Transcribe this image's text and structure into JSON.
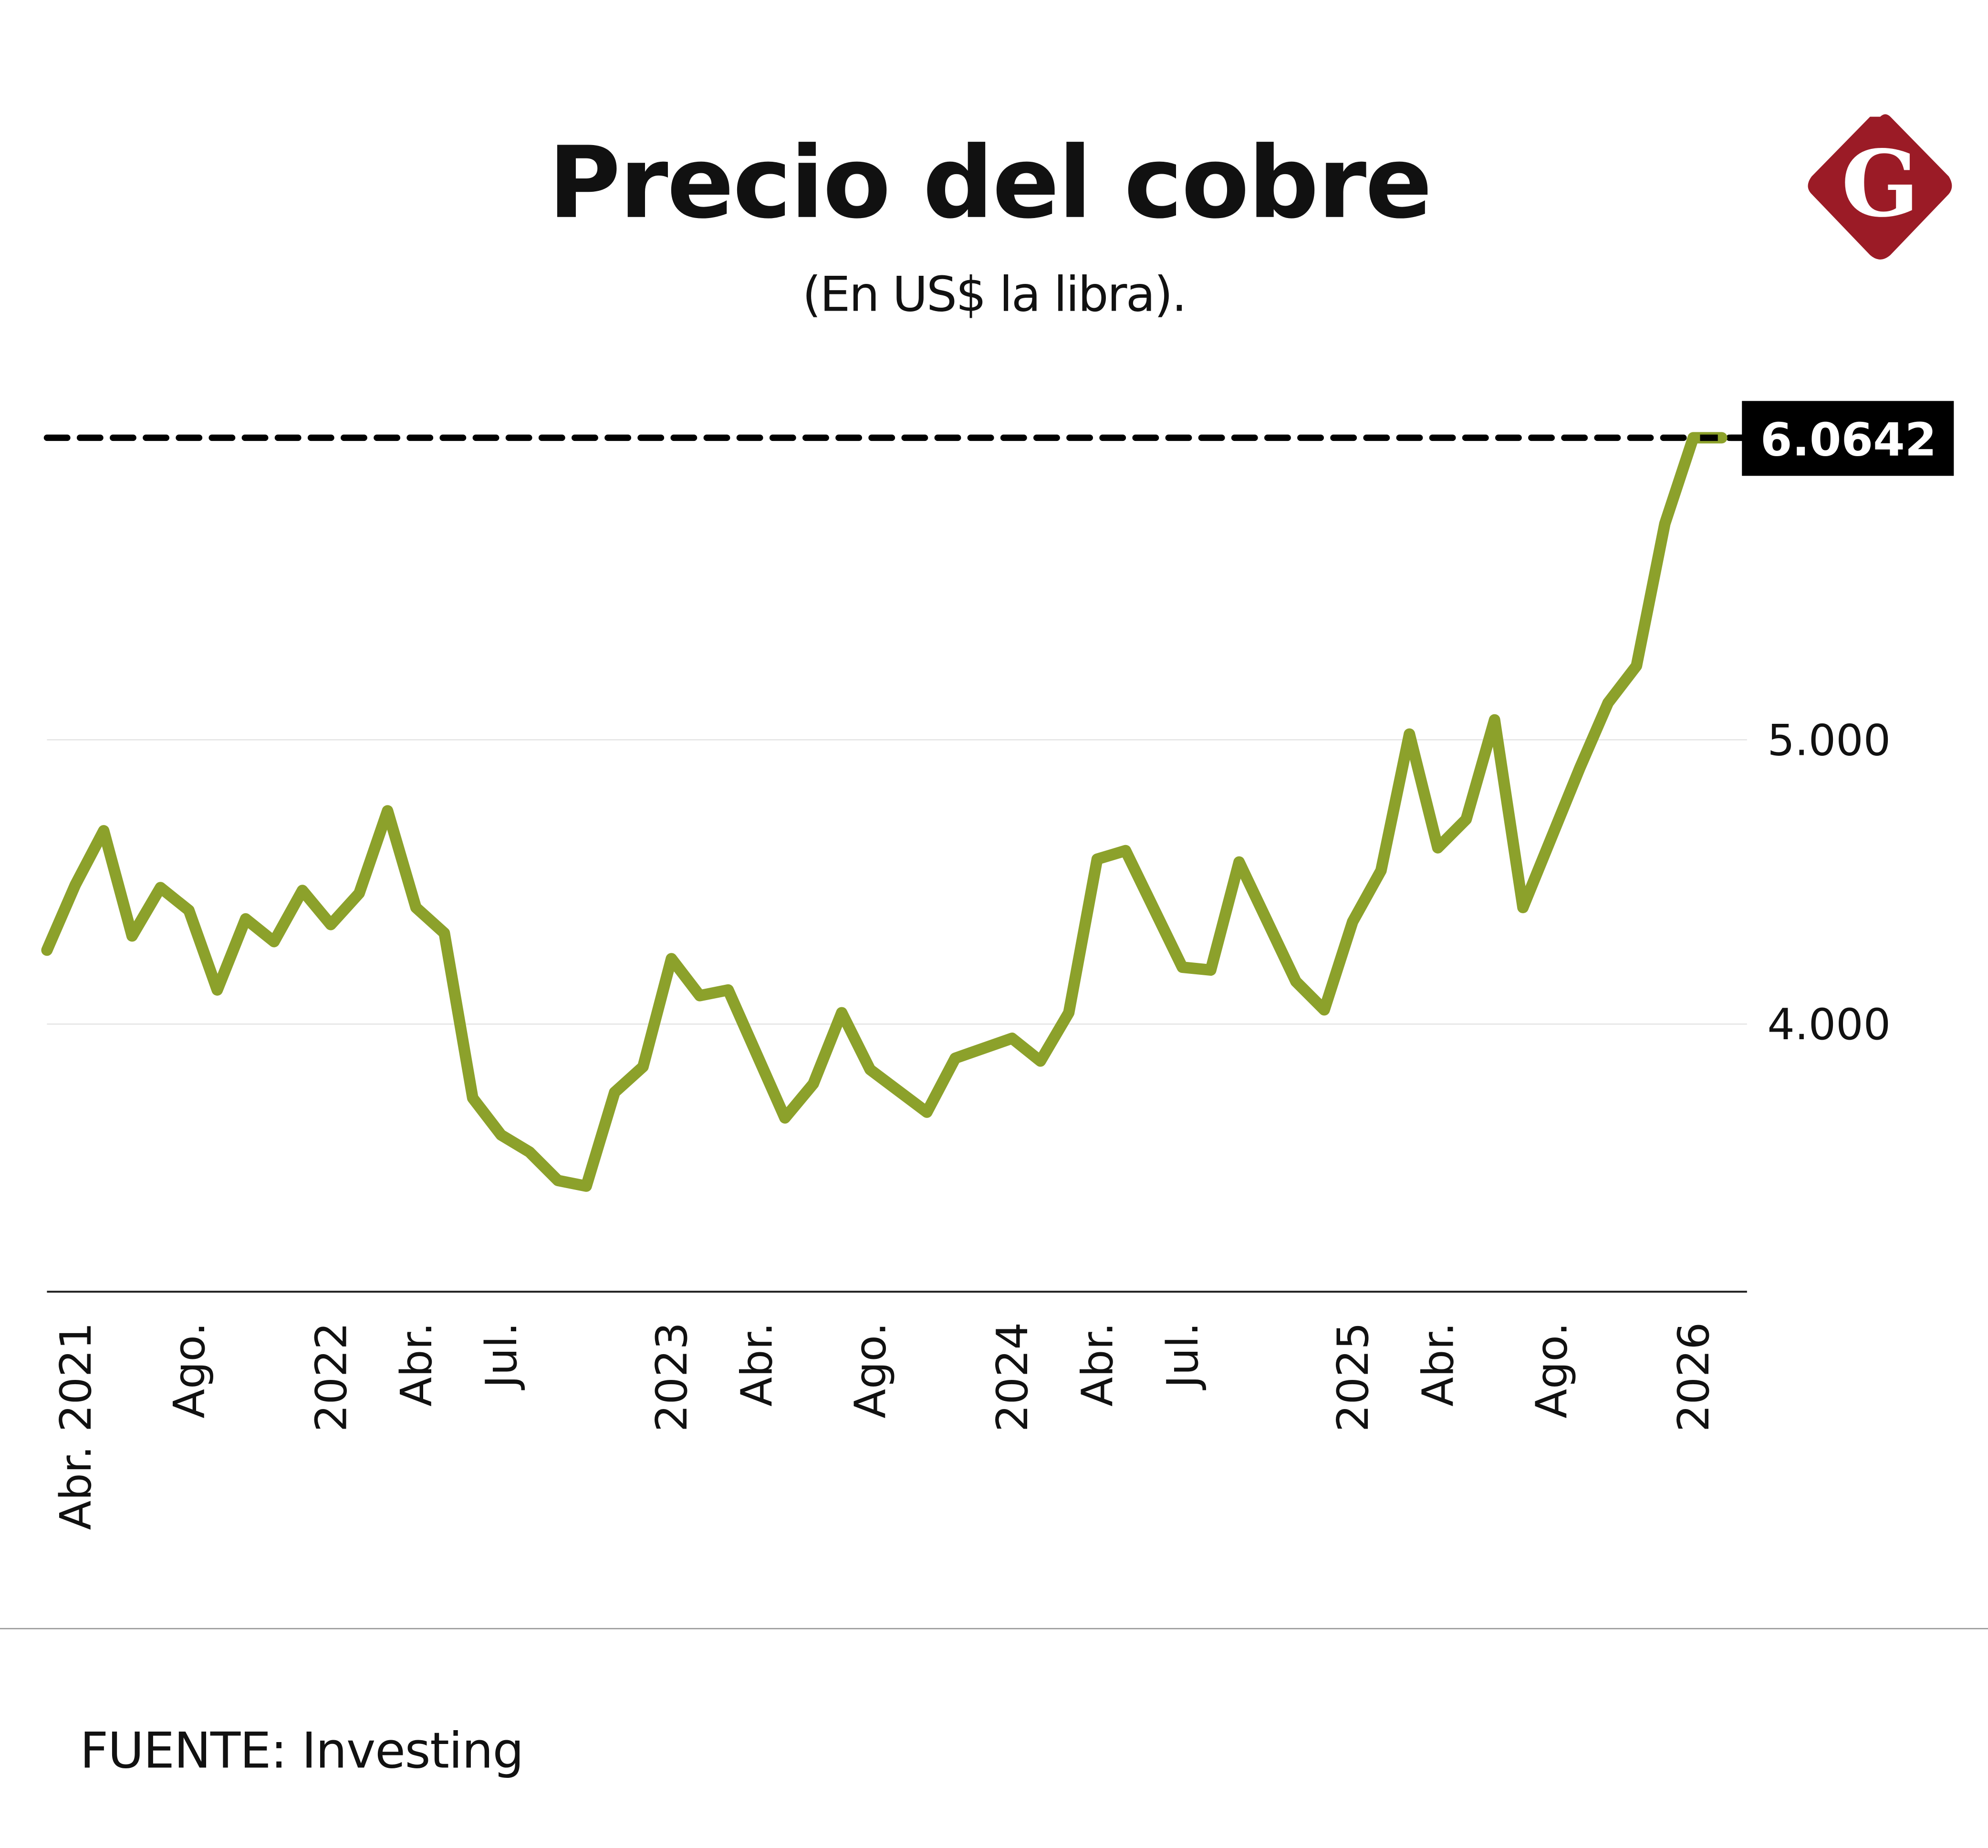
{
  "title": "Precio del cobre",
  "subtitle": "(En US$ la libra).",
  "source": "FUENTE: Investing",
  "logo": {
    "letter": "G",
    "color": "#9b1b26"
  },
  "colors": {
    "line": "#8ca12b",
    "reference": "#000000",
    "grid": "#e6e6e6"
  },
  "chart_data": {
    "type": "line",
    "title": "Precio del cobre",
    "subtitle": "(En US$ la libra).",
    "ylim": [
      3.12,
      6.1
    ],
    "grid": true,
    "y_ticks": [
      {
        "value": 4,
        "label": "4.000"
      },
      {
        "value": 5,
        "label": "5.000"
      }
    ],
    "x_ticks": [
      {
        "date": "2021-04",
        "label": "Abr. 2021"
      },
      {
        "date": "2021-08",
        "label": "Ago."
      },
      {
        "date": "2022-01",
        "label": "2022"
      },
      {
        "date": "2022-04",
        "label": "Abr."
      },
      {
        "date": "2022-07",
        "label": "Jul."
      },
      {
        "date": "2023-01",
        "label": "2023"
      },
      {
        "date": "2023-04",
        "label": "Abr."
      },
      {
        "date": "2023-08",
        "label": "Ago."
      },
      {
        "date": "2024-01",
        "label": "2024"
      },
      {
        "date": "2024-04",
        "label": "Abr."
      },
      {
        "date": "2024-07",
        "label": "Jul."
      },
      {
        "date": "2025-01",
        "label": "2025"
      },
      {
        "date": "2025-04",
        "label": "Abr."
      },
      {
        "date": "2025-08",
        "label": "Ago."
      },
      {
        "date": "2026-01",
        "label": "2026"
      }
    ],
    "reference_line": {
      "value": 6.0642,
      "label": "6.0642"
    },
    "series": [
      {
        "x": [
          "2021-03",
          "2021-04",
          "2021-05",
          "2021-06",
          "2021-07",
          "2021-08",
          "2021-09",
          "2021-10",
          "2021-11",
          "2021-12",
          "2022-01",
          "2022-02",
          "2022-03",
          "2022-04",
          "2022-05",
          "2022-06",
          "2022-07",
          "2022-08",
          "2022-09",
          "2022-10",
          "2022-11",
          "2022-12",
          "2023-01",
          "2023-02",
          "2023-03",
          "2023-05",
          "2023-06",
          "2023-07",
          "2023-08",
          "2023-10",
          "2023-11",
          "2024-01",
          "2024-02",
          "2024-03",
          "2024-04",
          "2024-05",
          "2024-07",
          "2024-08",
          "2024-09",
          "2024-11",
          "2024-12",
          "2025-01",
          "2025-02",
          "2025-03",
          "2025-04",
          "2025-05",
          "2025-06",
          "2025-07",
          "2025-09",
          "2025-10",
          "2025-11",
          "2025-12",
          "2026-01",
          "2026-02"
        ],
        "values": [
          4.26,
          4.49,
          4.68,
          4.31,
          4.48,
          4.4,
          4.12,
          4.37,
          4.29,
          4.47,
          4.35,
          4.46,
          4.75,
          4.41,
          4.32,
          3.74,
          3.61,
          3.55,
          3.45,
          3.43,
          3.76,
          3.85,
          4.23,
          4.1,
          4.12,
          3.67,
          3.79,
          4.04,
          3.84,
          3.69,
          3.88,
          3.95,
          3.87,
          4.04,
          4.58,
          4.61,
          4.2,
          4.19,
          4.57,
          4.15,
          4.05,
          4.36,
          4.54,
          5.02,
          4.62,
          4.72,
          5.07,
          4.41,
          4.9,
          5.13,
          5.26,
          5.76,
          6.0642,
          6.0642
        ]
      }
    ]
  }
}
